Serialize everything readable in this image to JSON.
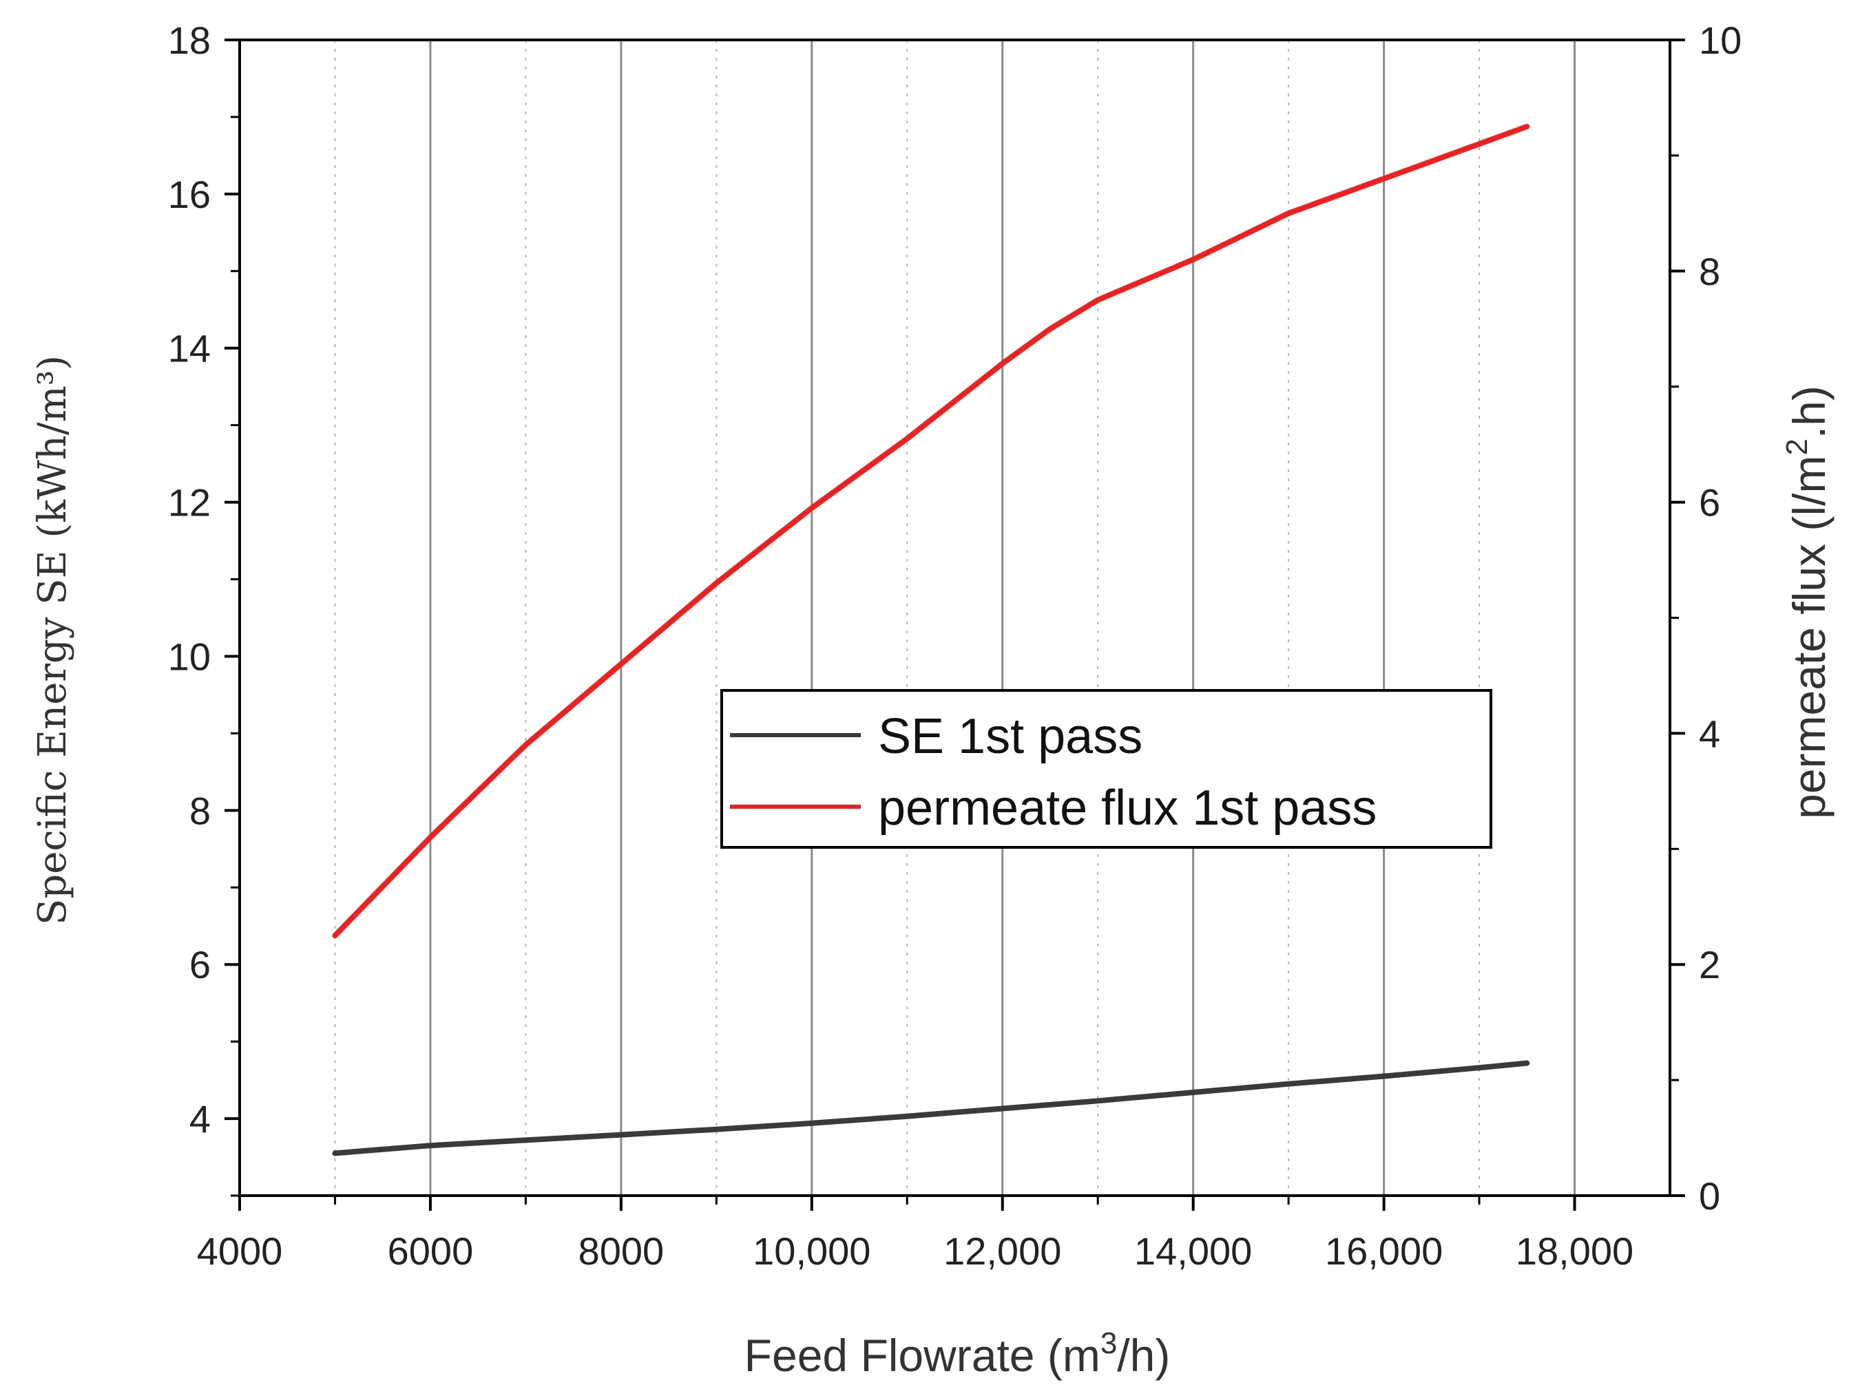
{
  "chart_data": {
    "type": "line",
    "title": "",
    "xlabel": "Feed Flowrate (m3/h)",
    "xlabel_parts": {
      "prefix": "Feed Flowrate (m",
      "sup": "3",
      "suffix": "/h)"
    },
    "ylabel_left": "Specific Energy SE (kWh/m³)",
    "ylabel_right": "permeate flux (l/m2.h)",
    "ylabel_right_parts": {
      "prefix": "permeate flux (l/m",
      "sup": "2",
      "suffix": ".h)"
    },
    "xlim": [
      4000,
      19000
    ],
    "ylim_left": [
      3,
      18
    ],
    "ylim_right": [
      0,
      10
    ],
    "x_ticks": [
      4000,
      6000,
      8000,
      10000,
      12000,
      14000,
      16000,
      18000
    ],
    "x_tick_labels": [
      "4000",
      "6000",
      "8000",
      "10,000",
      "12,000",
      "14,000",
      "16,000",
      "18,000"
    ],
    "x_minor_ticks": [
      5000,
      7000,
      9000,
      11000,
      13000,
      15000,
      17000
    ],
    "y_left_ticks": [
      4,
      6,
      8,
      10,
      12,
      14,
      16,
      18
    ],
    "y_left_tick_labels": [
      "4",
      "6",
      "8",
      "10",
      "12",
      "14",
      "16",
      "18"
    ],
    "y_right_ticks": [
      0,
      2,
      4,
      6,
      8,
      10
    ],
    "y_right_tick_labels": [
      "0",
      "2",
      "4",
      "6",
      "8",
      "10"
    ],
    "grid": true,
    "legend_position": "center",
    "series": [
      {
        "name": "SE 1st pass",
        "color": "#3a3a3a",
        "axis": "left",
        "x": [
          5000,
          6000,
          7000,
          8000,
          9000,
          10000,
          11000,
          12000,
          13000,
          14000,
          15000,
          16000,
          17000,
          17500
        ],
        "y": [
          3.55,
          3.65,
          3.72,
          3.79,
          3.86,
          3.94,
          4.03,
          4.13,
          4.23,
          4.34,
          4.45,
          4.55,
          4.66,
          4.72
        ]
      },
      {
        "name": "permeate flux 1st pass",
        "color": "#ee2020",
        "axis": "right",
        "x": [
          5000,
          6000,
          7000,
          8000,
          9000,
          10000,
          11000,
          12000,
          12500,
          13000,
          14000,
          15000,
          16000,
          17000,
          17500
        ],
        "y": [
          2.25,
          3.1,
          3.9,
          4.6,
          5.3,
          5.95,
          6.55,
          7.2,
          7.5,
          7.75,
          8.1,
          8.5,
          8.8,
          9.1,
          9.25
        ]
      }
    ]
  }
}
